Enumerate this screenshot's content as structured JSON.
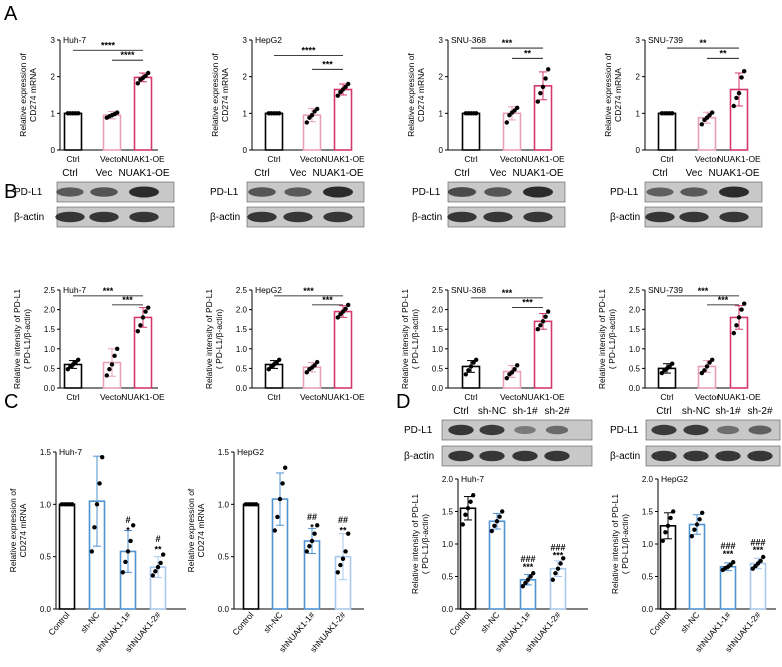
{
  "panel_labels": [
    "A",
    "B",
    "C",
    "D"
  ],
  "colors": {
    "ctrl": "#000000",
    "vector": "#e8a0b6",
    "oe": "#d63869",
    "sh_nc": "#4f93d2",
    "sh1": "#4f93d2",
    "sh2": "#a8c9ec",
    "bar_fill_ab": "#ffffff",
    "blot_bg": "#bcbcbc"
  },
  "blots_b": [
    {
      "header": [
        "Ctrl",
        "Vec",
        "NUAK1-OE"
      ],
      "rows": [
        "PD-L1",
        "β-actin"
      ]
    },
    {
      "header": [
        "Ctrl",
        "Vec",
        "NUAK1-OE"
      ],
      "rows": [
        "PD-L1",
        "β-actin"
      ]
    },
    {
      "header": [
        "Ctrl",
        "Vec",
        "NUAK1-OE"
      ],
      "rows": [
        "PD-L1",
        "β-actin"
      ]
    },
    {
      "header": [
        "Ctrl",
        "Vec",
        "NUAK1-OE"
      ],
      "rows": [
        "PD-L1",
        "β-actin"
      ]
    }
  ],
  "blots_d": [
    {
      "header": [
        "Ctrl",
        "sh-NC",
        "sh-1#",
        "sh-2#"
      ],
      "rows": [
        "PD-L1",
        "β-actin"
      ]
    },
    {
      "header": [
        "Ctrl",
        "sh-NC",
        "sh-1#",
        "sh-2#"
      ],
      "rows": [
        "PD-L1",
        "β-actin"
      ]
    }
  ],
  "chart_data": [
    {
      "panel": "A",
      "type": "bar",
      "title": "Huh-7",
      "ylabel": "Relative expression of CD274 mRNA",
      "categories": [
        "Ctrl",
        "Vector",
        "NUAK1-OE"
      ],
      "yticks": [
        "0",
        "1",
        "2",
        "3"
      ],
      "ylim": [
        0,
        3
      ],
      "values": [
        1.0,
        0.95,
        1.98
      ],
      "errors": [
        0.0,
        0.1,
        0.12
      ],
      "points": [
        [
          1,
          1,
          1,
          1,
          1
        ],
        [
          0.88,
          0.92,
          0.95,
          0.98,
          1.02
        ],
        [
          1.82,
          1.92,
          1.97,
          2.02,
          2.1
        ]
      ],
      "sig": [
        {
          "text": "****",
          "from": 0,
          "to": 2,
          "y": 2.72
        },
        {
          "text": "****",
          "from": 1,
          "to": 2,
          "y": 2.45
        }
      ]
    },
    {
      "panel": "A",
      "type": "bar",
      "title": "HepG2",
      "ylabel": "Relative expression of CD274 mRNA",
      "categories": [
        "Ctrl",
        "Vector",
        "NUAK1-OE"
      ],
      "yticks": [
        "0",
        "1",
        "2",
        "3"
      ],
      "ylim": [
        0,
        3
      ],
      "values": [
        1.0,
        0.95,
        1.65
      ],
      "errors": [
        0.0,
        0.18,
        0.15
      ],
      "points": [
        [
          1,
          1,
          1,
          1,
          1
        ],
        [
          0.75,
          0.88,
          0.95,
          1.05,
          1.12
        ],
        [
          1.48,
          1.58,
          1.65,
          1.72,
          1.8
        ]
      ],
      "sig": [
        {
          "text": "****",
          "from": 0,
          "to": 2,
          "y": 2.58
        },
        {
          "text": "***",
          "from": 1,
          "to": 2,
          "y": 2.2
        }
      ]
    },
    {
      "panel": "A",
      "type": "bar",
      "title": "SNU-368",
      "ylabel": "Relative expression of CD274 mRNA",
      "categories": [
        "Ctrl",
        "Vector",
        "NUAK1-OE"
      ],
      "yticks": [
        "0",
        "1",
        "2",
        "3"
      ],
      "ylim": [
        0,
        3
      ],
      "values": [
        1.0,
        1.0,
        1.75
      ],
      "errors": [
        0.0,
        0.18,
        0.38
      ],
      "points": [
        [
          1,
          1,
          1,
          1,
          1
        ],
        [
          0.75,
          0.95,
          1.02,
          1.08,
          1.15
        ],
        [
          1.32,
          1.55,
          1.72,
          1.95,
          2.2
        ]
      ],
      "sig": [
        {
          "text": "***",
          "from": 0,
          "to": 2,
          "y": 2.78
        },
        {
          "text": "**",
          "from": 1,
          "to": 2,
          "y": 2.5
        }
      ]
    },
    {
      "panel": "A",
      "type": "bar",
      "title": "SNU-739",
      "ylabel": "Relative expression of CD274 mRNA",
      "categories": [
        "Ctrl",
        "Vector",
        "NUAK1-OE"
      ],
      "yticks": [
        "0",
        "1",
        "2",
        "3"
      ],
      "ylim": [
        0,
        3
      ],
      "values": [
        1.0,
        0.88,
        1.65
      ],
      "errors": [
        0.0,
        0.15,
        0.45
      ],
      "points": [
        [
          1,
          1,
          1,
          1,
          1
        ],
        [
          0.7,
          0.82,
          0.88,
          0.95,
          1.02
        ],
        [
          1.2,
          1.42,
          1.55,
          1.98,
          2.15
        ]
      ],
      "sig": [
        {
          "text": "**",
          "from": 0,
          "to": 2,
          "y": 2.78
        },
        {
          "text": "**",
          "from": 1,
          "to": 2,
          "y": 2.5
        }
      ]
    },
    {
      "panel": "B",
      "type": "bar",
      "title": "Huh-7",
      "ylabel": "Relative intensity of PD-L1 ( PD-L1/β-actin)",
      "categories": [
        "Ctrl",
        "Vector",
        "NUAK1-OE"
      ],
      "yticks": [
        "0.0",
        "0.5",
        "1.0",
        "1.5",
        "2.0",
        "2.5"
      ],
      "ylim": [
        0,
        2.5
      ],
      "values": [
        0.6,
        0.65,
        1.8
      ],
      "errors": [
        0.1,
        0.35,
        0.25
      ],
      "points": [
        [
          0.48,
          0.55,
          0.6,
          0.66,
          0.72
        ],
        [
          0.32,
          0.48,
          0.6,
          0.82,
          1.0
        ],
        [
          1.45,
          1.6,
          1.8,
          1.95,
          2.05
        ]
      ],
      "sig": [
        {
          "text": "***",
          "from": 0,
          "to": 2,
          "y": 2.35
        },
        {
          "text": "***",
          "from": 1,
          "to": 2,
          "y": 2.12
        }
      ]
    },
    {
      "panel": "B",
      "type": "bar",
      "title": "HepG2",
      "ylabel": "Relative intensity of PD-L1 ( PD-L1/β-actin)",
      "categories": [
        "Ctrl",
        "Vector",
        "NUAK1-OE"
      ],
      "yticks": [
        "0.0",
        "0.5",
        "1.0",
        "1.5",
        "2.0",
        "2.5"
      ],
      "ylim": [
        0,
        2.5
      ],
      "values": [
        0.6,
        0.53,
        1.95
      ],
      "errors": [
        0.1,
        0.12,
        0.15
      ],
      "points": [
        [
          0.48,
          0.55,
          0.6,
          0.65,
          0.72
        ],
        [
          0.4,
          0.48,
          0.52,
          0.58,
          0.66
        ],
        [
          1.8,
          1.88,
          1.95,
          2.02,
          2.12
        ]
      ],
      "sig": [
        {
          "text": "***",
          "from": 0,
          "to": 2,
          "y": 2.35
        },
        {
          "text": "***",
          "from": 1,
          "to": 2,
          "y": 2.12
        }
      ]
    },
    {
      "panel": "B",
      "type": "bar",
      "title": "SNU-368",
      "ylabel": "Relative intensity of PD-L1 ( PD-L1/β-actin)",
      "categories": [
        "Ctrl",
        "Vector",
        "NUAK1-OE"
      ],
      "yticks": [
        "0.0",
        "0.5",
        "1.0",
        "1.5",
        "2.0",
        "2.5"
      ],
      "ylim": [
        0,
        2.5
      ],
      "values": [
        0.55,
        0.42,
        1.7
      ],
      "errors": [
        0.15,
        0.15,
        0.2
      ],
      "points": [
        [
          0.35,
          0.45,
          0.55,
          0.65,
          0.72
        ],
        [
          0.25,
          0.35,
          0.4,
          0.48,
          0.58
        ],
        [
          1.5,
          1.6,
          1.7,
          1.82,
          1.95
        ]
      ],
      "sig": [
        {
          "text": "***",
          "from": 0,
          "to": 2,
          "y": 2.3
        },
        {
          "text": "***",
          "from": 1,
          "to": 2,
          "y": 2.05
        }
      ]
    },
    {
      "panel": "B",
      "type": "bar",
      "title": "SNU-739",
      "ylabel": "Relative intensity of PD-L1 ( PD-L1/β-actin)",
      "categories": [
        "Ctrl",
        "Vector",
        "NUAK1-OE"
      ],
      "yticks": [
        "0.0",
        "0.5",
        "1.0",
        "1.5",
        "2.0",
        "2.5"
      ],
      "ylim": [
        0,
        2.5
      ],
      "values": [
        0.5,
        0.55,
        1.8
      ],
      "errors": [
        0.12,
        0.15,
        0.3
      ],
      "points": [
        [
          0.38,
          0.45,
          0.5,
          0.55,
          0.62
        ],
        [
          0.38,
          0.45,
          0.55,
          0.65,
          0.72
        ],
        [
          1.4,
          1.6,
          1.8,
          2.0,
          2.15
        ]
      ],
      "sig": [
        {
          "text": "***",
          "from": 0,
          "to": 2,
          "y": 2.35
        },
        {
          "text": "***",
          "from": 1,
          "to": 2,
          "y": 2.12
        }
      ]
    },
    {
      "panel": "C",
      "type": "bar",
      "title": "Huh-7",
      "ylabel": "Relative expression of CD274 mRNA",
      "categories": [
        "Control",
        "sh-NC",
        "shNUAK1-1#",
        "shNUAK1-2#"
      ],
      "yticks": [
        "0.0",
        "0.5",
        "1.0",
        "1.5"
      ],
      "ylim": [
        0,
        1.5
      ],
      "values": [
        1.0,
        1.03,
        0.55,
        0.4
      ],
      "errors": [
        0.0,
        0.43,
        0.2,
        0.1
      ],
      "points": [
        [
          1,
          1,
          1,
          1,
          1
        ],
        [
          0.55,
          0.78,
          1.0,
          1.2,
          1.45
        ],
        [
          0.35,
          0.45,
          0.55,
          0.65,
          0.8
        ],
        [
          0.32,
          0.36,
          0.4,
          0.44,
          0.52
        ]
      ],
      "sig": [
        {
          "text": "#",
          "cat": 2,
          "y": 0.82
        },
        {
          "text": "*",
          "cat": 2,
          "y": 0.72
        },
        {
          "text": "#",
          "cat": 3,
          "y": 0.64
        },
        {
          "text": "**",
          "cat": 3,
          "y": 0.54
        }
      ]
    },
    {
      "panel": "C",
      "type": "bar",
      "title": "HepG2",
      "ylabel": "Relative expression of CD274 mRNA",
      "categories": [
        "Control",
        "sh-NC",
        "shNUAK1-1#",
        "shNUAK1-2#"
      ],
      "yticks": [
        "0.0",
        "0.5",
        "1.0",
        "1.5"
      ],
      "ylim": [
        0,
        1.5
      ],
      "values": [
        1.0,
        1.05,
        0.65,
        0.5
      ],
      "errors": [
        0.0,
        0.25,
        0.12,
        0.22
      ],
      "points": [
        [
          1,
          1,
          1,
          1,
          1
        ],
        [
          0.75,
          0.88,
          1.05,
          1.2,
          1.35
        ],
        [
          0.55,
          0.6,
          0.65,
          0.72,
          0.8
        ],
        [
          0.35,
          0.42,
          0.48,
          0.55,
          0.72
        ]
      ],
      "sig": [
        {
          "text": "##",
          "cat": 2,
          "y": 0.85
        },
        {
          "text": "*",
          "cat": 2,
          "y": 0.75
        },
        {
          "text": "##",
          "cat": 3,
          "y": 0.82
        },
        {
          "text": "**",
          "cat": 3,
          "y": 0.72
        }
      ]
    },
    {
      "panel": "D",
      "type": "bar",
      "title": "Huh-7",
      "ylabel": "Relative intensity of PD-L1 ( PD-L1/β-actin)",
      "categories": [
        "Control",
        "sh-NC",
        "shNUAK1-1#",
        "shNUAK1-2#"
      ],
      "yticks": [
        "0.0",
        "0.5",
        "1.0",
        "1.5",
        "2.0"
      ],
      "ylim": [
        0,
        2
      ],
      "values": [
        1.55,
        1.35,
        0.45,
        0.62
      ],
      "errors": [
        0.18,
        0.12,
        0.08,
        0.12
      ],
      "points": [
        [
          1.3,
          1.45,
          1.55,
          1.65,
          1.75
        ],
        [
          1.2,
          1.28,
          1.35,
          1.42,
          1.5
        ],
        [
          0.35,
          0.4,
          0.45,
          0.5,
          0.55
        ],
        [
          0.45,
          0.55,
          0.62,
          0.7,
          0.78
        ]
      ],
      "sig": [
        {
          "text": "###",
          "cat": 2,
          "y": 0.72
        },
        {
          "text": "***",
          "cat": 2,
          "y": 0.6
        },
        {
          "text": "###",
          "cat": 3,
          "y": 0.9
        },
        {
          "text": "***",
          "cat": 3,
          "y": 0.78
        }
      ]
    },
    {
      "panel": "D",
      "type": "bar",
      "title": "HepG2",
      "ylabel": "Relative intensity of PD-L1 ( PD-L1/β-actin)",
      "categories": [
        "Control",
        "sh-NC",
        "shNUAK1-1#",
        "shNUAK1-2#"
      ],
      "yticks": [
        "0.0",
        "0.5",
        "1.0",
        "1.5",
        "2.0"
      ],
      "ylim": [
        0,
        2
      ],
      "values": [
        1.28,
        1.3,
        0.65,
        0.7
      ],
      "errors": [
        0.2,
        0.15,
        0.06,
        0.08
      ],
      "points": [
        [
          1.05,
          1.18,
          1.28,
          1.4,
          1.5
        ],
        [
          1.12,
          1.22,
          1.3,
          1.38,
          1.48
        ],
        [
          0.6,
          0.63,
          0.65,
          0.68,
          0.72
        ],
        [
          0.62,
          0.66,
          0.7,
          0.74,
          0.8
        ]
      ],
      "sig": [
        {
          "text": "###",
          "cat": 2,
          "y": 0.92
        },
        {
          "text": "***",
          "cat": 2,
          "y": 0.8
        },
        {
          "text": "###",
          "cat": 3,
          "y": 0.98
        },
        {
          "text": "***",
          "cat": 3,
          "y": 0.86
        }
      ]
    }
  ]
}
